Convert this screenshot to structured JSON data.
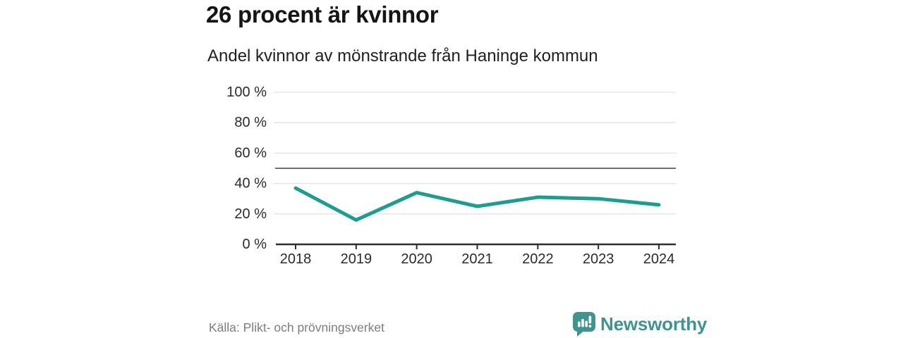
{
  "header": {
    "title": "26 procent är kvinnor",
    "subtitle": "Andel kvinnor av mönstrande från Haninge kommun"
  },
  "chart_data": {
    "type": "line",
    "title": "26 procent är kvinnor",
    "subtitle": "Andel kvinnor av mönstrande från Haninge kommun",
    "x": [
      "2018",
      "2019",
      "2020",
      "2021",
      "2022",
      "2023",
      "2024"
    ],
    "series": [
      {
        "name": "Andel kvinnor av mönstrande",
        "values": [
          37,
          16,
          34,
          25,
          31,
          30,
          26
        ]
      }
    ],
    "unit": "%",
    "ylim": [
      0,
      100
    ],
    "y_ticks": [
      0,
      20,
      40,
      60,
      80,
      100
    ],
    "y_tick_suffix": " %",
    "reference_line": 50,
    "grid": true,
    "legend": "none",
    "colors": {
      "line": "#1a9e8f",
      "grid": "#e3e3e3",
      "reference_line": "#6f6f6f",
      "axis": "#2e2e2e",
      "tick_label": "#2b2b2b"
    }
  },
  "footer": {
    "source": "Källa: Plikt- och prövningsverket",
    "brand": "Newsworthy",
    "brand_color": "#3e948e"
  }
}
